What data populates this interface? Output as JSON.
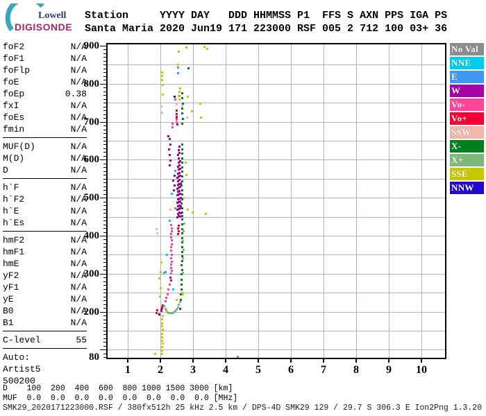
{
  "logo": {
    "line1": "Lowell",
    "line2": "DIGISONDE",
    "arc_color": "#35A8BC",
    "line1_color": "#2B3A7A",
    "line2_color": "#A6256C"
  },
  "header": {
    "line1": "Station     YYYY DAY   DDD HHMMSS P1  FFS S AXN PPS IGA PS",
    "line2": "Santa Maria 2020 Jun19 171 223000 RSF 005 2 712 100 03+ 36"
  },
  "left_panel": {
    "sections": [
      {
        "rows": [
          [
            "foF2",
            "N/A"
          ],
          [
            "foF1",
            "N/A"
          ],
          [
            "foFlp",
            "N/A"
          ],
          [
            "foE",
            "N/A"
          ],
          [
            "foEp",
            "0.38"
          ],
          [
            "fxI",
            "N/A"
          ],
          [
            "foEs",
            "N/A"
          ],
          [
            "fmin",
            "N/A"
          ]
        ]
      },
      {
        "rows": [
          [
            "MUF(D)",
            "N/A"
          ],
          [
            "M(D)",
            "N/A"
          ],
          [
            "D",
            "N/A"
          ]
        ]
      },
      {
        "rows": [
          [
            "h`F",
            "N/A"
          ],
          [
            "h`F2",
            "N/A"
          ],
          [
            "h`E",
            "N/A"
          ],
          [
            "h`Es",
            "N/A"
          ]
        ]
      },
      {
        "rows": [
          [
            "hmF2",
            "N/A"
          ],
          [
            "hmF1",
            "N/A"
          ],
          [
            "hmE",
            "N/A"
          ],
          [
            "yF2",
            "N/A"
          ],
          [
            "yF1",
            "N/A"
          ],
          [
            "yE",
            "N/A"
          ],
          [
            "B0",
            "N/A"
          ],
          [
            "B1",
            "N/A"
          ]
        ]
      },
      {
        "rows": [
          [
            "C-level",
            "55"
          ]
        ]
      },
      {
        "rows": [
          [
            "Auto:",
            ""
          ],
          [
            "Artist5",
            ""
          ],
          [
            "500200",
            ""
          ]
        ]
      }
    ]
  },
  "legend": [
    {
      "label": "No Val",
      "color": "#8C8C8C"
    },
    {
      "label": "NNE",
      "color": "#00CCF0"
    },
    {
      "label": "E",
      "color": "#3D9AF0"
    },
    {
      "label": "W",
      "color": "#A400A8"
    },
    {
      "label": "Vo-",
      "color": "#FF4499"
    },
    {
      "label": "Vo+",
      "color": "#F40032"
    },
    {
      "label": "SSW",
      "color": "#F2B4AB"
    },
    {
      "label": "X-",
      "color": "#00801E"
    },
    {
      "label": "X+",
      "color": "#7EB878"
    },
    {
      "label": "SSE",
      "color": "#C8C800"
    },
    {
      "label": "NNW",
      "color": "#2408D0"
    }
  ],
  "bottom": {
    "d_row": "D    100  200  400  600  800 1000 1500 3000 [km]",
    "muf_row": "MUF  0.0  0.0  0.0  0.0  0.0  0.0  0.0  0.0 [MHz]",
    "status": "SMK29_2020171223000.RSF / 380fx512h 25 kHz 2.5 km / DPS-4D SMK29 129 / 29.7 S 306.3 E Ion2Png 1.3.20"
  },
  "chart_data": {
    "type": "scatter",
    "title": "Digisonde ionogram, Santa Maria, 2020 Jun19 (171) 22:30:00",
    "x_axis": {
      "ticks": [
        1,
        2,
        3,
        4,
        5,
        6,
        7,
        8,
        9,
        10
      ],
      "range": [
        0.4,
        10.8
      ],
      "unit": "MHz"
    },
    "y_axis": {
      "tick_labels": [
        900,
        800,
        700,
        600,
        500,
        400,
        300,
        200,
        80
      ],
      "minor_step": 10,
      "range": [
        80,
        900
      ],
      "unit": "km"
    },
    "grid": {
      "x_step": 1,
      "y_step": 50,
      "color": "#B2B2C6"
    },
    "marker_px": 3,
    "series": [
      {
        "name": "No Val",
        "color": "#8C8C8C",
        "points": [
          [
            2.46,
            472
          ],
          [
            4.38,
            82
          ]
        ]
      },
      {
        "name": "NNE",
        "color": "#00CCF0",
        "points": [
          [
            2.2,
            350
          ],
          [
            2.28,
            440
          ],
          [
            2.36,
            510
          ],
          [
            2.4,
            258
          ],
          [
            2.12,
            302
          ]
        ]
      },
      {
        "name": "E",
        "color": "#3D9AF0",
        "points": [
          [
            2.55,
            843
          ],
          [
            2.55,
            828
          ],
          [
            2.46,
            570
          ],
          [
            2.16,
            304
          ]
        ]
      },
      {
        "name": "W",
        "color": "#A400A8",
        "points": [
          [
            2.03,
            205
          ],
          [
            2.06,
            212
          ],
          [
            2.6,
            207
          ],
          [
            2.52,
            448
          ],
          [
            2.56,
            452
          ],
          [
            2.6,
            450
          ],
          [
            2.54,
            458
          ],
          [
            2.58,
            462
          ],
          [
            2.62,
            460
          ],
          [
            2.53,
            468
          ],
          [
            2.57,
            470
          ],
          [
            2.61,
            472
          ],
          [
            2.55,
            478
          ],
          [
            2.59,
            480
          ],
          [
            2.63,
            478
          ],
          [
            2.52,
            486
          ],
          [
            2.56,
            488
          ],
          [
            2.6,
            490
          ],
          [
            2.54,
            496
          ],
          [
            2.58,
            498
          ],
          [
            2.62,
            500
          ],
          [
            2.53,
            506
          ],
          [
            2.57,
            508
          ],
          [
            2.61,
            510
          ],
          [
            2.55,
            516
          ],
          [
            2.59,
            518
          ],
          [
            2.52,
            524
          ],
          [
            2.56,
            526
          ],
          [
            2.6,
            528
          ],
          [
            2.54,
            534
          ],
          [
            2.58,
            536
          ],
          [
            2.62,
            538
          ],
          [
            2.55,
            544
          ],
          [
            2.59,
            546
          ],
          [
            2.53,
            552
          ],
          [
            2.57,
            556
          ],
          [
            2.61,
            558
          ],
          [
            2.55,
            564
          ],
          [
            2.59,
            566
          ],
          [
            2.56,
            574
          ],
          [
            2.6,
            576
          ],
          [
            2.54,
            582
          ],
          [
            2.58,
            586
          ],
          [
            2.56,
            592
          ],
          [
            2.6,
            596
          ],
          [
            2.57,
            604
          ],
          [
            2.55,
            612
          ],
          [
            2.58,
            618
          ],
          [
            2.56,
            626
          ],
          [
            2.59,
            634
          ],
          [
            2.42,
            520
          ],
          [
            2.44,
            532
          ],
          [
            2.4,
            545
          ],
          [
            2.43,
            558
          ],
          [
            2.28,
            655
          ],
          [
            2.3,
            640
          ],
          [
            2.27,
            628
          ],
          [
            2.29,
            612
          ],
          [
            2.31,
            598
          ],
          [
            2.28,
            585
          ],
          [
            2.25,
            662
          ],
          [
            2.51,
            713
          ],
          [
            2.52,
            693
          ]
        ]
      },
      {
        "name": "Vo-",
        "color": "#FF4499",
        "points": [
          [
            2.33,
            300
          ],
          [
            2.35,
            308
          ],
          [
            2.33,
            316
          ],
          [
            2.34,
            324
          ],
          [
            2.36,
            332
          ],
          [
            2.33,
            340
          ],
          [
            2.35,
            350
          ],
          [
            2.34,
            360
          ],
          [
            2.33,
            370
          ],
          [
            2.35,
            378
          ],
          [
            2.36,
            388
          ],
          [
            2.34,
            396
          ],
          [
            2.33,
            404
          ],
          [
            2.35,
            412
          ],
          [
            2.36,
            420
          ],
          [
            2.34,
            428
          ],
          [
            2.28,
            272
          ],
          [
            2.25,
            258
          ],
          [
            2.22,
            246
          ],
          [
            2.18,
            236
          ],
          [
            2.15,
            228
          ],
          [
            2.37,
            695
          ],
          [
            2.38,
            685
          ],
          [
            2.51,
            706
          ],
          [
            2.5,
            699
          ],
          [
            2.59,
            768
          ],
          [
            2.45,
            758
          ]
        ]
      },
      {
        "name": "Vo+",
        "color": "#F40032",
        "points": [
          [
            2.3,
            290
          ],
          [
            2.32,
            282
          ],
          [
            2.05,
            210
          ],
          [
            2.07,
            216
          ],
          [
            2.03,
            202
          ],
          [
            1.88,
            196
          ],
          [
            1.9,
            203
          ],
          [
            2.55,
            405
          ],
          [
            2.56,
            412
          ],
          [
            2.55,
            419
          ],
          [
            2.57,
            426
          ],
          [
            2.5,
            730
          ],
          [
            2.5,
            720
          ],
          [
            2.49,
            712
          ]
        ]
      },
      {
        "name": "SSW",
        "color": "#F2B4AB",
        "points": [
          [
            2.04,
            740
          ],
          [
            2.06,
            724
          ],
          [
            2.66,
            742
          ],
          [
            2.5,
            745
          ],
          [
            1.88,
            418
          ],
          [
            1.9,
            406
          ],
          [
            2.82,
            712
          ],
          [
            2.3,
            468
          ],
          [
            2.74,
            500
          ]
        ]
      },
      {
        "name": "X-",
        "color": "#00801E",
        "points": [
          [
            2.34,
            196
          ],
          [
            2.54,
            211
          ],
          [
            2.62,
            232
          ],
          [
            2.63,
            245
          ],
          [
            2.64,
            258
          ],
          [
            2.65,
            272
          ],
          [
            2.64,
            285
          ],
          [
            2.65,
            298
          ],
          [
            2.66,
            310
          ],
          [
            2.65,
            322
          ],
          [
            2.66,
            334
          ],
          [
            2.67,
            346
          ],
          [
            2.66,
            358
          ],
          [
            2.67,
            370
          ],
          [
            2.66,
            382
          ],
          [
            2.68,
            394
          ],
          [
            2.67,
            406
          ],
          [
            2.68,
            418
          ],
          [
            2.67,
            430
          ],
          [
            2.68,
            442
          ],
          [
            2.67,
            452
          ],
          [
            2.66,
            462
          ],
          [
            2.67,
            472
          ],
          [
            2.65,
            484
          ],
          [
            2.68,
            496
          ],
          [
            2.66,
            508
          ],
          [
            2.67,
            520
          ],
          [
            2.65,
            532
          ],
          [
            2.68,
            544
          ],
          [
            2.66,
            556
          ],
          [
            2.67,
            568
          ],
          [
            2.66,
            580
          ],
          [
            2.68,
            592
          ],
          [
            2.67,
            604
          ],
          [
            2.66,
            616
          ],
          [
            2.68,
            628
          ],
          [
            2.67,
            640
          ],
          [
            2.68,
            695
          ],
          [
            2.69,
            708
          ],
          [
            2.68,
            722
          ],
          [
            2.68,
            735
          ],
          [
            2.69,
            748
          ],
          [
            2.68,
            762
          ],
          [
            2.68,
            775
          ],
          [
            2.87,
            840
          ]
        ]
      },
      {
        "name": "X+",
        "color": "#7EB878",
        "points": [
          [
            2.12,
            215
          ],
          [
            2.15,
            208
          ],
          [
            2.18,
            203
          ],
          [
            2.22,
            199
          ],
          [
            2.26,
            197
          ],
          [
            2.3,
            196
          ],
          [
            2.36,
            196
          ],
          [
            2.38,
            197
          ],
          [
            2.42,
            199
          ],
          [
            2.46,
            202
          ],
          [
            2.5,
            206
          ],
          [
            2.54,
            212
          ],
          [
            2.57,
            218
          ],
          [
            2.6,
            225
          ],
          [
            2.7,
            302
          ],
          [
            2.7,
            340
          ],
          [
            2.71,
            362
          ],
          [
            2.7,
            386
          ],
          [
            2.72,
            412
          ],
          [
            2.73,
            432
          ]
        ]
      },
      {
        "name": "SSE",
        "color": "#C8C800",
        "points": [
          [
            1.85,
            89
          ],
          [
            2.05,
            88
          ],
          [
            2.06,
            98
          ],
          [
            2.05,
            107
          ],
          [
            2.07,
            116
          ],
          [
            2.05,
            124
          ],
          [
            2.06,
            133
          ],
          [
            2.05,
            142
          ],
          [
            2.07,
            152
          ],
          [
            2.05,
            161
          ],
          [
            2.06,
            170
          ],
          [
            2.05,
            180
          ],
          [
            2.07,
            190
          ],
          [
            1.98,
            240
          ],
          [
            2.0,
            262
          ],
          [
            1.96,
            288
          ],
          [
            2.02,
            305
          ],
          [
            2.04,
            330
          ],
          [
            2.5,
            232
          ],
          [
            2.66,
            250
          ],
          [
            2.7,
            246
          ],
          [
            2.85,
            468
          ],
          [
            2.99,
            462
          ],
          [
            3.4,
            458
          ],
          [
            2.79,
            560
          ],
          [
            2.78,
            592
          ],
          [
            2.05,
            830
          ],
          [
            2.06,
            820
          ],
          [
            2.05,
            810
          ],
          [
            2.07,
            797
          ],
          [
            2.08,
            772
          ],
          [
            2.57,
            885
          ],
          [
            2.55,
            850
          ],
          [
            2.6,
            788
          ],
          [
            2.58,
            778
          ],
          [
            2.57,
            768
          ],
          [
            2.59,
            758
          ],
          [
            2.83,
            765
          ],
          [
            2.97,
            728
          ],
          [
            3.22,
            748
          ],
          [
            3.25,
            712
          ],
          [
            3.36,
            897
          ],
          [
            3.44,
            892
          ],
          [
            2.8,
            895
          ]
        ]
      },
      {
        "name": "NNW",
        "color": "#2408D0",
        "points": [
          [
            2.43,
            765
          ],
          [
            1.97,
            192
          ]
        ]
      }
    ]
  }
}
